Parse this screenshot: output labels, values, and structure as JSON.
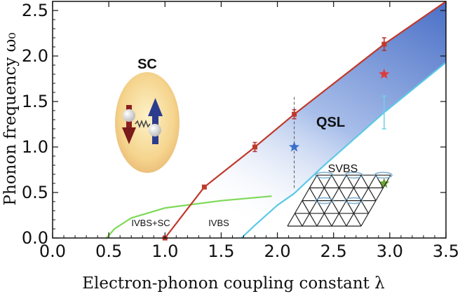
{
  "chart_data": {
    "type": "line",
    "xlabel": "Electron-phonon coupling constant λ",
    "ylabel": "Phonon frequency ω₀",
    "xlim": [
      0.0,
      3.5
    ],
    "ylim": [
      0.0,
      2.6
    ],
    "xticks": [
      "0.0",
      "0.5",
      "1.0",
      "1.5",
      "2.0",
      "2.5",
      "3.0",
      "3.5"
    ],
    "yticks": [
      "0.0",
      "0.5",
      "1.0",
      "1.5",
      "2.0",
      "2.5"
    ],
    "regions": [
      {
        "label": "SC"
      },
      {
        "label": "QSL"
      },
      {
        "label": "SVBS"
      },
      {
        "label": "IVBS+SC"
      },
      {
        "label": "IVBS"
      }
    ],
    "series": [
      {
        "color": "#c0392b",
        "x": [
          1.0,
          1.35,
          1.8,
          2.15,
          2.95,
          3.5
        ],
        "y": [
          0.0,
          0.56,
          1.0,
          1.36,
          2.13,
          2.6
        ],
        "errors": [
          0.0,
          0.02,
          0.05,
          0.05,
          0.07,
          0.0
        ],
        "marker_x": [
          1.0,
          1.35,
          1.8,
          2.15,
          2.95
        ]
      },
      {
        "color": "#5bc8e6",
        "x": [
          1.68,
          1.8,
          2.0,
          2.15,
          2.4,
          2.95,
          3.5
        ],
        "y": [
          0.0,
          0.14,
          0.36,
          0.49,
          0.78,
          1.38,
          1.93
        ],
        "errors": [
          0,
          0,
          0,
          0,
          0,
          0.18,
          0
        ],
        "marker_x": [
          2.95
        ]
      },
      {
        "color": "#7ed957",
        "x": [
          0.48,
          0.55,
          0.7,
          1.0,
          1.5,
          1.95
        ],
        "y": [
          0.0,
          0.1,
          0.22,
          0.33,
          0.41,
          0.46
        ]
      }
    ],
    "stars": [
      {
        "x": 2.15,
        "y": 1.0,
        "color": "#3b6fc9"
      },
      {
        "x": 2.95,
        "y": 1.8,
        "color": "#e03a3a"
      },
      {
        "x": 2.95,
        "y": 0.6,
        "color": "#6aa532"
      }
    ],
    "vline": {
      "x": 2.15,
      "ymin": 0.55,
      "ymax": 1.55
    }
  }
}
